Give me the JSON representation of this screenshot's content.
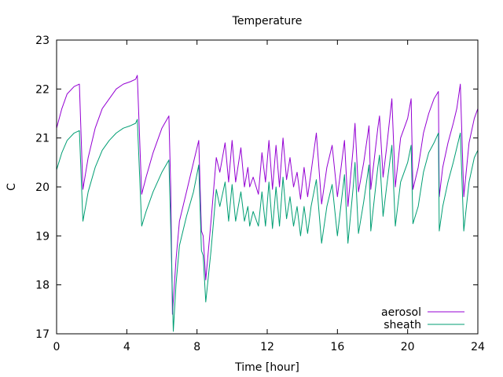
{
  "chart_data": {
    "type": "line",
    "title": "Temperature",
    "xlabel": "Time [hour]",
    "ylabel": "C",
    "xlim": [
      0,
      24
    ],
    "ylim": [
      17,
      23
    ],
    "xticks": [
      0,
      4,
      8,
      12,
      16,
      20,
      24
    ],
    "yticks": [
      17,
      18,
      19,
      20,
      21,
      22,
      23
    ],
    "grid": false,
    "legend_position": "bottom-right",
    "series": [
      {
        "name": "aerosol",
        "color": "#9400d3",
        "points": [
          [
            0.0,
            21.2
          ],
          [
            0.3,
            21.6
          ],
          [
            0.6,
            21.9
          ],
          [
            1.0,
            22.05
          ],
          [
            1.3,
            22.1
          ],
          [
            1.5,
            19.95
          ],
          [
            1.8,
            20.6
          ],
          [
            2.2,
            21.2
          ],
          [
            2.6,
            21.6
          ],
          [
            3.0,
            21.8
          ],
          [
            3.4,
            22.0
          ],
          [
            3.8,
            22.1
          ],
          [
            4.2,
            22.15
          ],
          [
            4.5,
            22.2
          ],
          [
            4.6,
            22.28
          ],
          [
            4.85,
            19.85
          ],
          [
            5.1,
            20.2
          ],
          [
            5.5,
            20.7
          ],
          [
            6.0,
            21.2
          ],
          [
            6.4,
            21.45
          ],
          [
            6.5,
            20.0
          ],
          [
            6.6,
            17.4
          ],
          [
            6.8,
            18.5
          ],
          [
            7.0,
            19.3
          ],
          [
            7.4,
            19.9
          ],
          [
            7.8,
            20.5
          ],
          [
            8.1,
            20.95
          ],
          [
            8.25,
            19.1
          ],
          [
            8.35,
            19.0
          ],
          [
            8.5,
            18.1
          ],
          [
            8.8,
            19.3
          ],
          [
            9.1,
            20.6
          ],
          [
            9.3,
            20.3
          ],
          [
            9.6,
            20.9
          ],
          [
            9.8,
            20.1
          ],
          [
            10.0,
            20.95
          ],
          [
            10.2,
            20.1
          ],
          [
            10.5,
            20.8
          ],
          [
            10.7,
            20.0
          ],
          [
            10.9,
            20.4
          ],
          [
            11.0,
            20.0
          ],
          [
            11.2,
            20.2
          ],
          [
            11.5,
            19.85
          ],
          [
            11.7,
            20.7
          ],
          [
            11.9,
            20.1
          ],
          [
            12.1,
            20.95
          ],
          [
            12.3,
            19.95
          ],
          [
            12.5,
            20.85
          ],
          [
            12.7,
            20.0
          ],
          [
            12.9,
            21.0
          ],
          [
            13.1,
            20.15
          ],
          [
            13.3,
            20.6
          ],
          [
            13.5,
            20.0
          ],
          [
            13.7,
            20.3
          ],
          [
            13.9,
            19.75
          ],
          [
            14.1,
            20.4
          ],
          [
            14.3,
            19.8
          ],
          [
            14.5,
            20.3
          ],
          [
            14.8,
            21.1
          ],
          [
            15.1,
            19.65
          ],
          [
            15.4,
            20.4
          ],
          [
            15.7,
            20.85
          ],
          [
            16.0,
            19.8
          ],
          [
            16.4,
            20.95
          ],
          [
            16.6,
            19.6
          ],
          [
            16.9,
            20.8
          ],
          [
            17.0,
            21.3
          ],
          [
            17.2,
            19.9
          ],
          [
            17.5,
            20.5
          ],
          [
            17.8,
            21.25
          ],
          [
            17.9,
            19.95
          ],
          [
            18.3,
            21.2
          ],
          [
            18.4,
            21.45
          ],
          [
            18.6,
            20.2
          ],
          [
            18.8,
            20.8
          ],
          [
            19.1,
            21.8
          ],
          [
            19.3,
            20.0
          ],
          [
            19.6,
            21.0
          ],
          [
            20.0,
            21.4
          ],
          [
            20.2,
            21.8
          ],
          [
            20.3,
            19.95
          ],
          [
            20.6,
            20.4
          ],
          [
            20.9,
            21.1
          ],
          [
            21.2,
            21.5
          ],
          [
            21.5,
            21.8
          ],
          [
            21.75,
            21.95
          ],
          [
            21.8,
            19.8
          ],
          [
            22.0,
            20.4
          ],
          [
            22.3,
            20.9
          ],
          [
            22.6,
            21.3
          ],
          [
            22.8,
            21.6
          ],
          [
            23.0,
            22.1
          ],
          [
            23.2,
            19.8
          ],
          [
            23.5,
            20.9
          ],
          [
            23.8,
            21.4
          ],
          [
            24.0,
            21.6
          ]
        ]
      },
      {
        "name": "sheath",
        "color": "#009e73",
        "points": [
          [
            0.0,
            20.35
          ],
          [
            0.3,
            20.7
          ],
          [
            0.6,
            20.95
          ],
          [
            1.0,
            21.1
          ],
          [
            1.3,
            21.15
          ],
          [
            1.5,
            19.3
          ],
          [
            1.8,
            19.9
          ],
          [
            2.2,
            20.4
          ],
          [
            2.6,
            20.75
          ],
          [
            3.0,
            20.95
          ],
          [
            3.4,
            21.1
          ],
          [
            3.8,
            21.2
          ],
          [
            4.2,
            21.25
          ],
          [
            4.5,
            21.3
          ],
          [
            4.6,
            21.38
          ],
          [
            4.85,
            19.2
          ],
          [
            5.1,
            19.5
          ],
          [
            5.5,
            19.9
          ],
          [
            6.0,
            20.3
          ],
          [
            6.4,
            20.55
          ],
          [
            6.5,
            19.2
          ],
          [
            6.65,
            17.05
          ],
          [
            6.8,
            18.0
          ],
          [
            7.0,
            18.8
          ],
          [
            7.4,
            19.4
          ],
          [
            7.8,
            19.9
          ],
          [
            8.1,
            20.45
          ],
          [
            8.25,
            18.7
          ],
          [
            8.35,
            18.6
          ],
          [
            8.5,
            17.65
          ],
          [
            8.8,
            18.7
          ],
          [
            9.1,
            19.95
          ],
          [
            9.3,
            19.6
          ],
          [
            9.6,
            20.1
          ],
          [
            9.8,
            19.3
          ],
          [
            10.0,
            20.05
          ],
          [
            10.2,
            19.3
          ],
          [
            10.5,
            19.9
          ],
          [
            10.7,
            19.3
          ],
          [
            10.9,
            19.6
          ],
          [
            11.0,
            19.2
          ],
          [
            11.2,
            19.5
          ],
          [
            11.5,
            19.2
          ],
          [
            11.7,
            19.9
          ],
          [
            11.9,
            19.2
          ],
          [
            12.1,
            20.1
          ],
          [
            12.3,
            19.15
          ],
          [
            12.5,
            20.0
          ],
          [
            12.7,
            19.2
          ],
          [
            12.9,
            20.2
          ],
          [
            13.1,
            19.35
          ],
          [
            13.3,
            19.8
          ],
          [
            13.5,
            19.2
          ],
          [
            13.7,
            19.6
          ],
          [
            13.9,
            19.0
          ],
          [
            14.1,
            19.6
          ],
          [
            14.3,
            19.05
          ],
          [
            14.5,
            19.6
          ],
          [
            14.8,
            20.15
          ],
          [
            15.1,
            18.85
          ],
          [
            15.4,
            19.6
          ],
          [
            15.7,
            20.05
          ],
          [
            16.0,
            19.0
          ],
          [
            16.4,
            20.25
          ],
          [
            16.6,
            18.85
          ],
          [
            16.9,
            20.0
          ],
          [
            17.0,
            20.5
          ],
          [
            17.2,
            19.05
          ],
          [
            17.5,
            19.7
          ],
          [
            17.8,
            20.45
          ],
          [
            17.9,
            19.1
          ],
          [
            18.3,
            20.4
          ],
          [
            18.4,
            20.65
          ],
          [
            18.6,
            19.4
          ],
          [
            18.8,
            20.0
          ],
          [
            19.1,
            20.85
          ],
          [
            19.3,
            19.2
          ],
          [
            19.6,
            20.1
          ],
          [
            20.0,
            20.5
          ],
          [
            20.2,
            20.85
          ],
          [
            20.3,
            19.25
          ],
          [
            20.6,
            19.6
          ],
          [
            20.9,
            20.3
          ],
          [
            21.2,
            20.7
          ],
          [
            21.5,
            20.9
          ],
          [
            21.75,
            21.1
          ],
          [
            21.8,
            19.1
          ],
          [
            22.0,
            19.6
          ],
          [
            22.3,
            20.1
          ],
          [
            22.6,
            20.5
          ],
          [
            22.8,
            20.8
          ],
          [
            23.0,
            21.1
          ],
          [
            23.2,
            19.1
          ],
          [
            23.5,
            20.1
          ],
          [
            23.8,
            20.6
          ],
          [
            24.0,
            20.75
          ]
        ]
      }
    ]
  }
}
